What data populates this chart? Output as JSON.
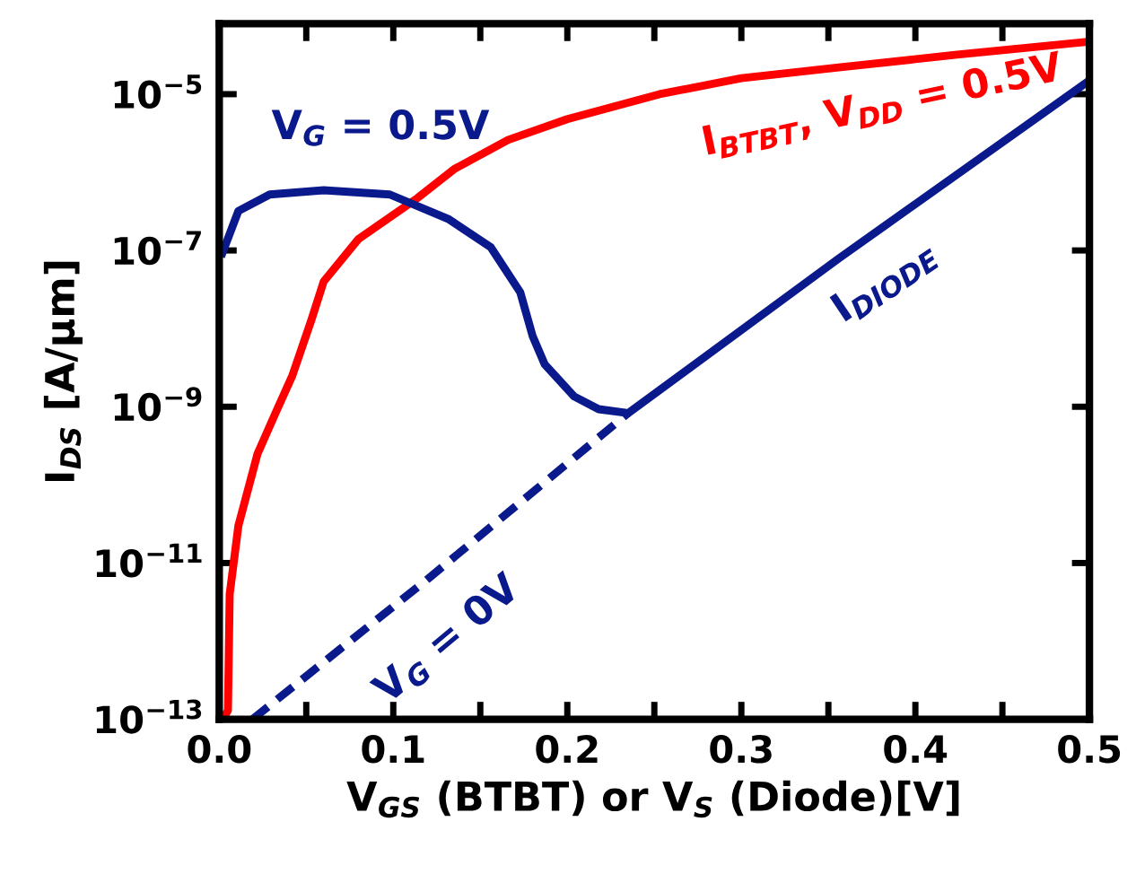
{
  "chart_data": {
    "type": "line",
    "xlabel": "V$_{GS}$ (BTBT) or V$_{S}$ (Diode)[V]",
    "ylabel": "I$_{DS}$ [A/µm]",
    "log": "y",
    "xlim": [
      0,
      0.5
    ],
    "xticks": [
      {
        "value": 0,
        "label": "0.0"
      },
      {
        "value": 0.05,
        "label": null
      },
      0.1,
      {
        "value": 0.15,
        "label": null
      },
      0.2,
      {
        "value": 0.25,
        "label": null
      },
      0.3,
      {
        "value": 0.35,
        "label": null
      },
      0.4,
      {
        "value": 0.45,
        "label": null
      },
      0.5
    ],
    "ylim": [
      1e-13,
      8e-05
    ],
    "yticks": [
      {
        "value": 1e-13,
        "label": "10$^{−13}$"
      },
      {
        "value": 1e-11,
        "label": "10$^{−11}$"
      },
      {
        "value": 1e-09,
        "label": "10$^{−9}$"
      },
      {
        "value": 1e-07,
        "label": "10$^{−7}$"
      },
      {
        "value": 1e-05,
        "label": "10$^{−5}$"
      }
    ],
    "grid": false,
    "legend": false,
    "series": [
      {
        "color": "#ff0000",
        "line_style": "solid",
        "x": [
          0.002,
          0.005,
          0.006,
          0.011,
          0.022,
          0.032,
          0.042,
          0.053,
          0.06,
          0.08,
          0.114,
          0.135,
          0.166,
          0.2,
          0.253,
          0.3,
          0.356,
          0.424,
          0.5
        ],
        "values": [
          1e-13,
          1.3e-13,
          4e-12,
          3e-11,
          2.5e-10,
          8e-10,
          2.5e-09,
          1.3e-08,
          4e-08,
          1.4e-07,
          4.7e-07,
          1.1e-06,
          2.6e-06,
          4.8e-06,
          1e-05,
          1.6e-05,
          2.2e-05,
          3.2e-05,
          4.7e-05
        ]
      },
      {
        "color": "#0a1a8c",
        "line_style": "solid",
        "x": [
          0.001,
          0.011,
          0.029,
          0.06,
          0.098,
          0.132,
          0.156,
          0.173,
          0.18,
          0.187,
          0.204,
          0.218,
          0.235,
          0.356,
          0.5
        ],
        "values": [
          8.3e-08,
          3.2e-07,
          5.2e-07,
          5.9e-07,
          5.2e-07,
          2.5e-07,
          1.1e-07,
          2.9e-08,
          8.1e-09,
          3.5e-09,
          1.35e-09,
          9.3e-10,
          8.3e-10,
          7.9e-08,
          1.5e-05
        ]
      },
      {
        "color": "#0a1a8c",
        "line_style": "dashed",
        "x": [
          0.019,
          0.12,
          0.235
        ],
        "values": [
          1e-13,
          6.3e-12,
          8.3e-10
        ]
      }
    ],
    "annotations": [
      {
        "text": "V$_{G}$ = 0.5V",
        "x": 0.06,
        "y": 5.9e-07
      },
      {
        "text": "I$_{BTBT}$, V$_{DD}$ = 0.5V",
        "x": 0.3,
        "y": 1.6e-05
      },
      {
        "text": "I$_{DIODE}$",
        "x": 0.356,
        "y": 7.9e-08
      },
      {
        "text": "V$_{G}$ = 0V",
        "x": 0.12,
        "y": 6.3e-12
      }
    ]
  }
}
